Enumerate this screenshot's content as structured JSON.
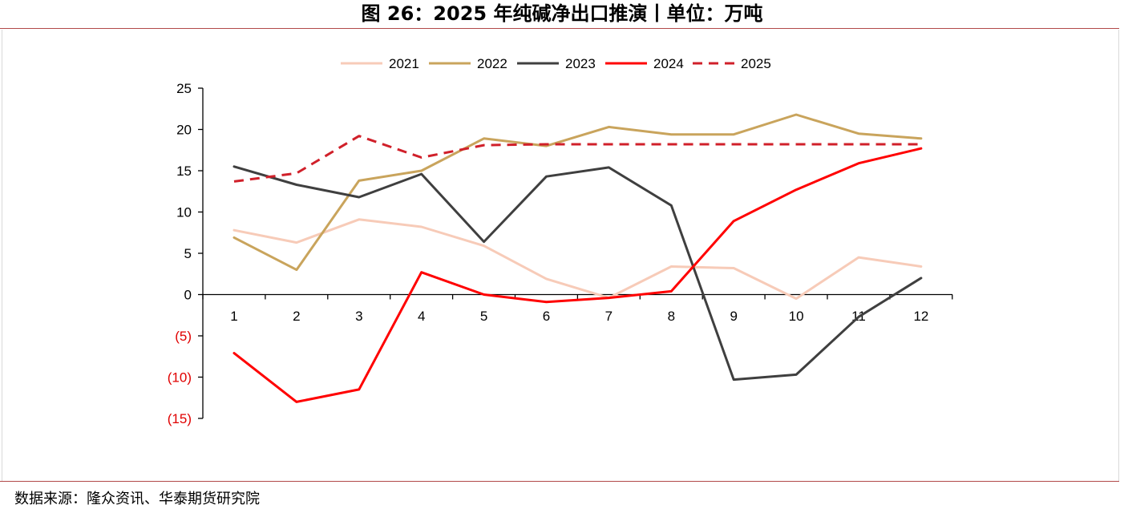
{
  "title": "图 26：2025 年纯碱净出口推演丨单位：万吨",
  "source": "数据来源：隆众资讯、华泰期货研究院",
  "colors": {
    "rule": "#b24a4a",
    "negative_tick": "#e00000",
    "axis": "#000000"
  },
  "chart_data": {
    "type": "line",
    "title": "",
    "xlabel": "",
    "ylabel": "",
    "x": [
      1,
      2,
      3,
      4,
      5,
      6,
      7,
      8,
      9,
      10,
      11,
      12
    ],
    "ylim": [
      -15,
      25
    ],
    "yticks": [
      25,
      20,
      15,
      10,
      5,
      0,
      -5,
      -10,
      -15
    ],
    "ytick_labels": [
      "25",
      "20",
      "15",
      "10",
      "5",
      "0",
      "(5)",
      "(10)",
      "(15)"
    ],
    "grid": false,
    "legend": "top-center",
    "series": [
      {
        "name": "2021",
        "color": "#f7cbb8",
        "dash": false,
        "values": [
          7.8,
          6.3,
          9.1,
          8.2,
          5.9,
          1.9,
          -0.4,
          3.4,
          3.2,
          -0.5,
          4.5,
          3.4
        ]
      },
      {
        "name": "2022",
        "color": "#c9a45c",
        "dash": false,
        "values": [
          6.9,
          3.0,
          13.8,
          15.0,
          18.9,
          18.0,
          20.3,
          19.4,
          19.4,
          21.8,
          19.5,
          18.9
        ]
      },
      {
        "name": "2023",
        "color": "#3f3f3f",
        "dash": false,
        "values": [
          15.5,
          13.3,
          11.8,
          14.6,
          6.4,
          14.3,
          15.4,
          10.8,
          -10.3,
          -9.7,
          -2.7,
          2.0
        ]
      },
      {
        "name": "2024",
        "color": "#ff0000",
        "dash": false,
        "values": [
          -7.1,
          -13.0,
          -11.5,
          2.7,
          0.0,
          -0.9,
          -0.4,
          0.4,
          8.9,
          12.7,
          15.9,
          17.7
        ]
      },
      {
        "name": "2025",
        "color": "#d0202a",
        "dash": true,
        "values": [
          13.7,
          14.7,
          19.2,
          16.6,
          18.1,
          18.2,
          18.2,
          18.2,
          18.2,
          18.2,
          18.2,
          18.2
        ]
      }
    ]
  }
}
